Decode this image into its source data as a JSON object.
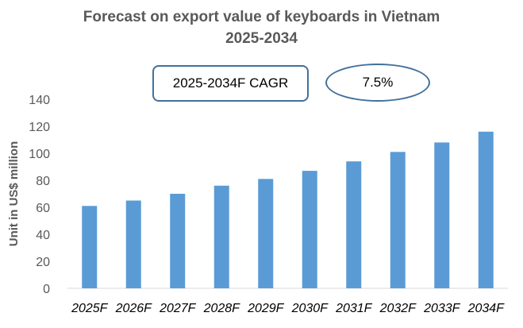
{
  "chart_data": {
    "type": "bar",
    "title_line1": "Forecast on export value of keyboards in Vietnam",
    "title_line2": "2025-2034",
    "ylabel": "Unit in US$ million",
    "xlabel": "",
    "categories": [
      "2025F",
      "2026F",
      "2027F",
      "2028F",
      "2029F",
      "2030F",
      "2031F",
      "2032F",
      "2033F",
      "2034F"
    ],
    "values": [
      61,
      65,
      70,
      76,
      81,
      87,
      94,
      101,
      108,
      116
    ],
    "ylim": [
      0,
      140
    ],
    "yticks": [
      "0",
      "20",
      "40",
      "60",
      "80",
      "100",
      "120",
      "140"
    ],
    "bar_color": "#5b9bd5",
    "grid": false,
    "legend": "none"
  },
  "cagr": {
    "label": "2025-2034F CAGR",
    "value": "7.5%"
  }
}
